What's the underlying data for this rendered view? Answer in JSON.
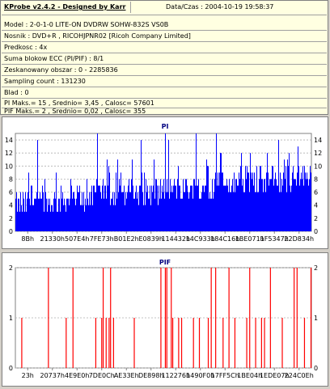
{
  "info": {
    "title": "KProbe v2.4.2 - Designed by Karr",
    "datetime": "Data/Czas : 2004-10-19 19:58:37",
    "lines": [
      "Model : 2-0-1-0 LITE-ON DVDRW SOHW-832S  VS0B",
      "Nosnik : DVD+R , RICOHJPNR02 [Ricoh Company Limited]",
      "Predkosc : 4x",
      "Suma blokow ECC (PI/PIF) : 8/1",
      "Zeskanowany obszar : 0 - 2285836",
      "Sampling count : 131230",
      "Blad : 0",
      "PI Maks.= 15 , Srednio= 3,45 , Calosc= 57601",
      "PIF Maks.= 2 , Srednio= 0,02 , Calosc= 355"
    ]
  },
  "chart_data": [
    {
      "type": "bar",
      "title": "PI",
      "ylim": [
        0,
        15
      ],
      "yticks": [
        0,
        2,
        4,
        6,
        8,
        10,
        12,
        14
      ],
      "xtick_labels": [
        "8Bh",
        "21330h",
        "507E4h",
        "7FE73h",
        "B01E2h",
        "E0839h",
        "114432h",
        "14C933h",
        "184C16h",
        "1BE071h",
        "1F5347h",
        "22D834h"
      ],
      "bar_color": "#0000ff",
      "grid": "dashed-horizontal",
      "max": 15,
      "average": 3.45
    },
    {
      "type": "bar",
      "title": "PIF",
      "ylim": [
        0,
        2
      ],
      "yticks": [
        0,
        1,
        2
      ],
      "xtick_labels": [
        "23h",
        "20737h",
        "4E9E0h",
        "7DE0Ch",
        "AE33Eh",
        "DE898h",
        "112276h",
        "1490F0h",
        "17FF5Ch",
        "1BE04h",
        "1EDE07h",
        "224C0Eh"
      ],
      "bar_color": "#ff0000",
      "grid": "dashed-horizontal",
      "bars": [
        {
          "pos": 0.02,
          "value": 1
        },
        {
          "pos": 0.11,
          "value": 2
        },
        {
          "pos": 0.17,
          "value": 1
        },
        {
          "pos": 0.193,
          "value": 2
        },
        {
          "pos": 0.27,
          "value": 1
        },
        {
          "pos": 0.29,
          "value": 1
        },
        {
          "pos": 0.295,
          "value": 2
        },
        {
          "pos": 0.305,
          "value": 1
        },
        {
          "pos": 0.315,
          "value": 1
        },
        {
          "pos": 0.32,
          "value": 2
        },
        {
          "pos": 0.33,
          "value": 1
        },
        {
          "pos": 0.4,
          "value": 1
        },
        {
          "pos": 0.49,
          "value": 2
        },
        {
          "pos": 0.505,
          "value": 2
        },
        {
          "pos": 0.51,
          "value": 2
        },
        {
          "pos": 0.525,
          "value": 2
        },
        {
          "pos": 0.53,
          "value": 1
        },
        {
          "pos": 0.55,
          "value": 1
        },
        {
          "pos": 0.56,
          "value": 1
        },
        {
          "pos": 0.6,
          "value": 1
        },
        {
          "pos": 0.62,
          "value": 1
        },
        {
          "pos": 0.65,
          "value": 1
        },
        {
          "pos": 0.66,
          "value": 2
        },
        {
          "pos": 0.675,
          "value": 2
        },
        {
          "pos": 0.7,
          "value": 1
        },
        {
          "pos": 0.72,
          "value": 2
        },
        {
          "pos": 0.74,
          "value": 1
        },
        {
          "pos": 0.78,
          "value": 1
        },
        {
          "pos": 0.79,
          "value": 2
        },
        {
          "pos": 0.81,
          "value": 1
        },
        {
          "pos": 0.83,
          "value": 1
        },
        {
          "pos": 0.84,
          "value": 1
        },
        {
          "pos": 0.86,
          "value": 2
        },
        {
          "pos": 0.9,
          "value": 1
        },
        {
          "pos": 0.94,
          "value": 2
        },
        {
          "pos": 0.95,
          "value": 2
        },
        {
          "pos": 0.975,
          "value": 1
        },
        {
          "pos": 0.997,
          "value": 2
        }
      ]
    }
  ]
}
